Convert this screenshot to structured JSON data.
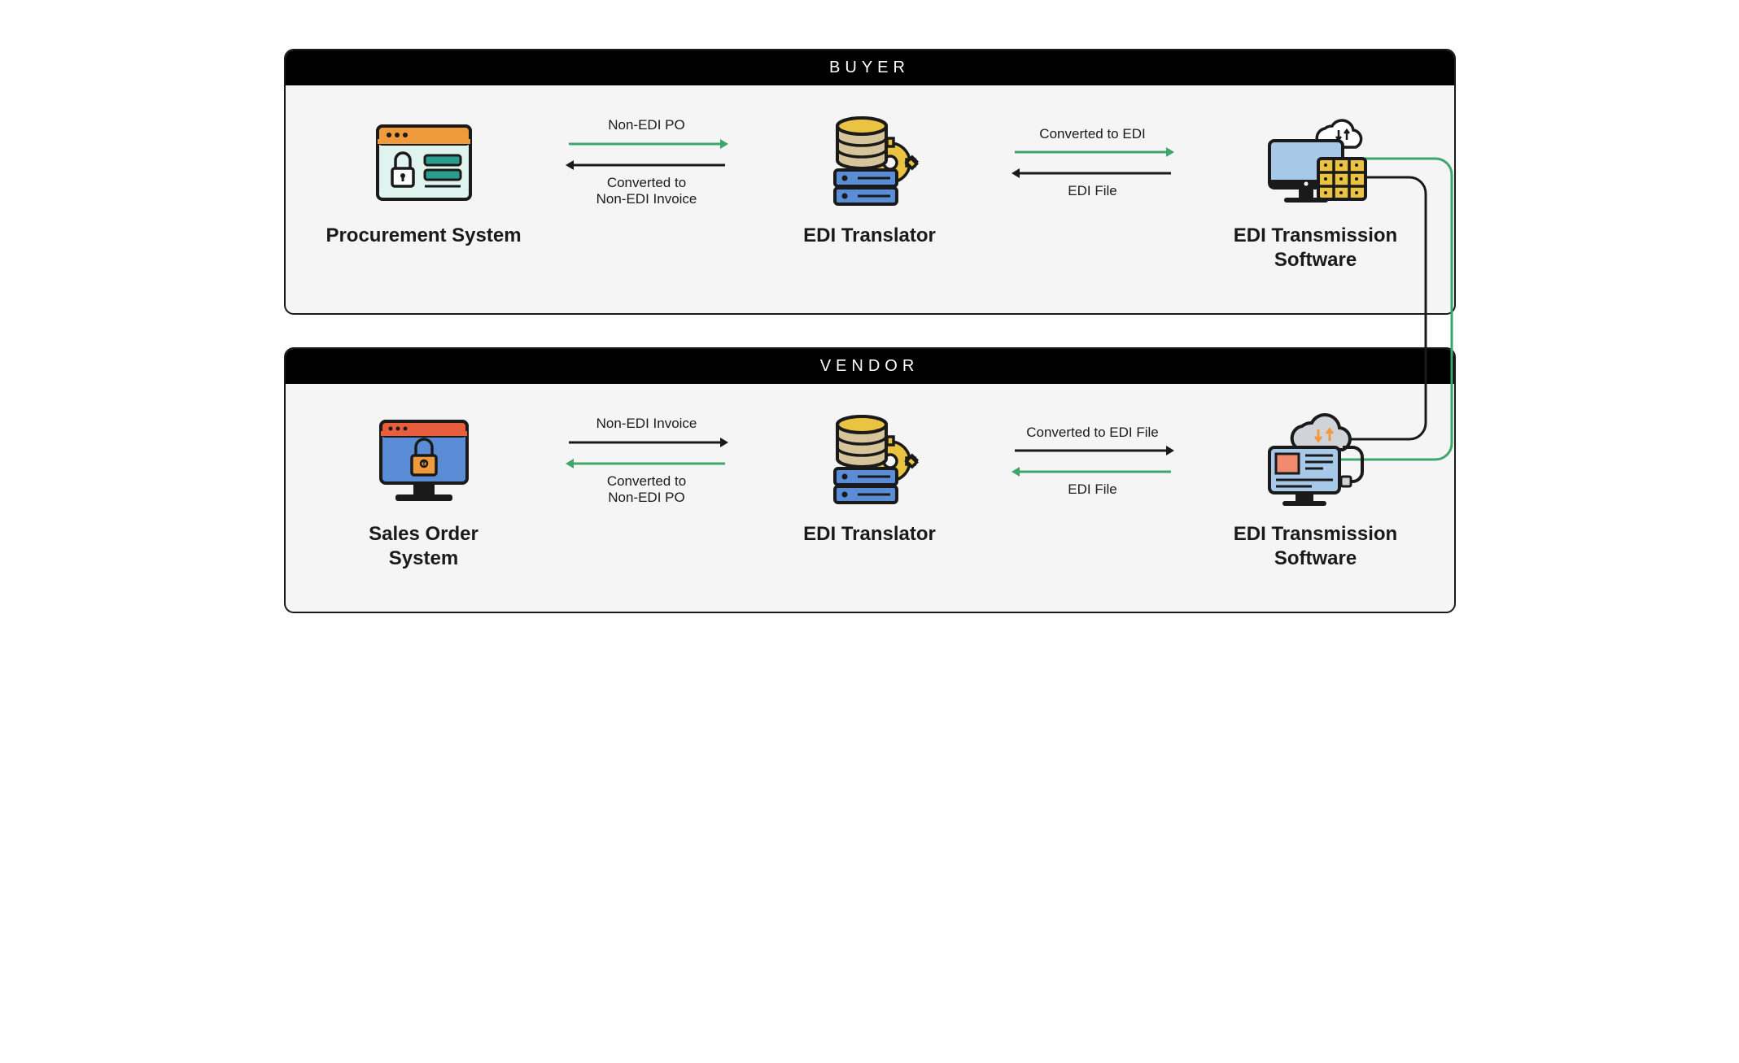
{
  "type": "flowchart",
  "background_color": "#ffffff",
  "panel_bg": "#f5f5f5",
  "panel_border": "#1a1a1a",
  "header_bg": "#000000",
  "header_text_color": "#ffffff",
  "label_fontsize": 24,
  "arrow_label_fontsize": 17,
  "arrow_stroke_width": 3,
  "colors": {
    "green": "#3fa66b",
    "black": "#1a1a1a",
    "orange": "#f09a3e",
    "yellow": "#e9c341",
    "tan": "#d6c59a",
    "blue": "#5a8dd6",
    "lightblue": "#a8c8e8",
    "mint": "#e0f4ef",
    "teal": "#2a9d8f",
    "red": "#e85d3d",
    "salmon": "#f08a6e",
    "grey": "#d0d4d8"
  },
  "panels": {
    "buyer": {
      "title": "BUYER",
      "nodes": {
        "proc": "Procurement System",
        "trans": "EDI Translator",
        "xmit": "EDI Transmission\nSoftware"
      },
      "arrows": {
        "a1_top": "Non-EDI PO",
        "a1_bot": "Converted to\nNon-EDI Invoice",
        "a2_top": "Converted to EDI",
        "a2_bot": "EDI File"
      }
    },
    "vendor": {
      "title": "VENDOR",
      "nodes": {
        "sales": "Sales Order\nSystem",
        "trans": "EDI Translator",
        "xmit": "EDI Transmission\nSoftware"
      },
      "arrows": {
        "a1_top": "Non-EDI Invoice",
        "a1_bot": "Converted to\nNon-EDI PO",
        "a2_top": "Converted to EDI File",
        "a2_bot": "EDI File"
      }
    }
  }
}
